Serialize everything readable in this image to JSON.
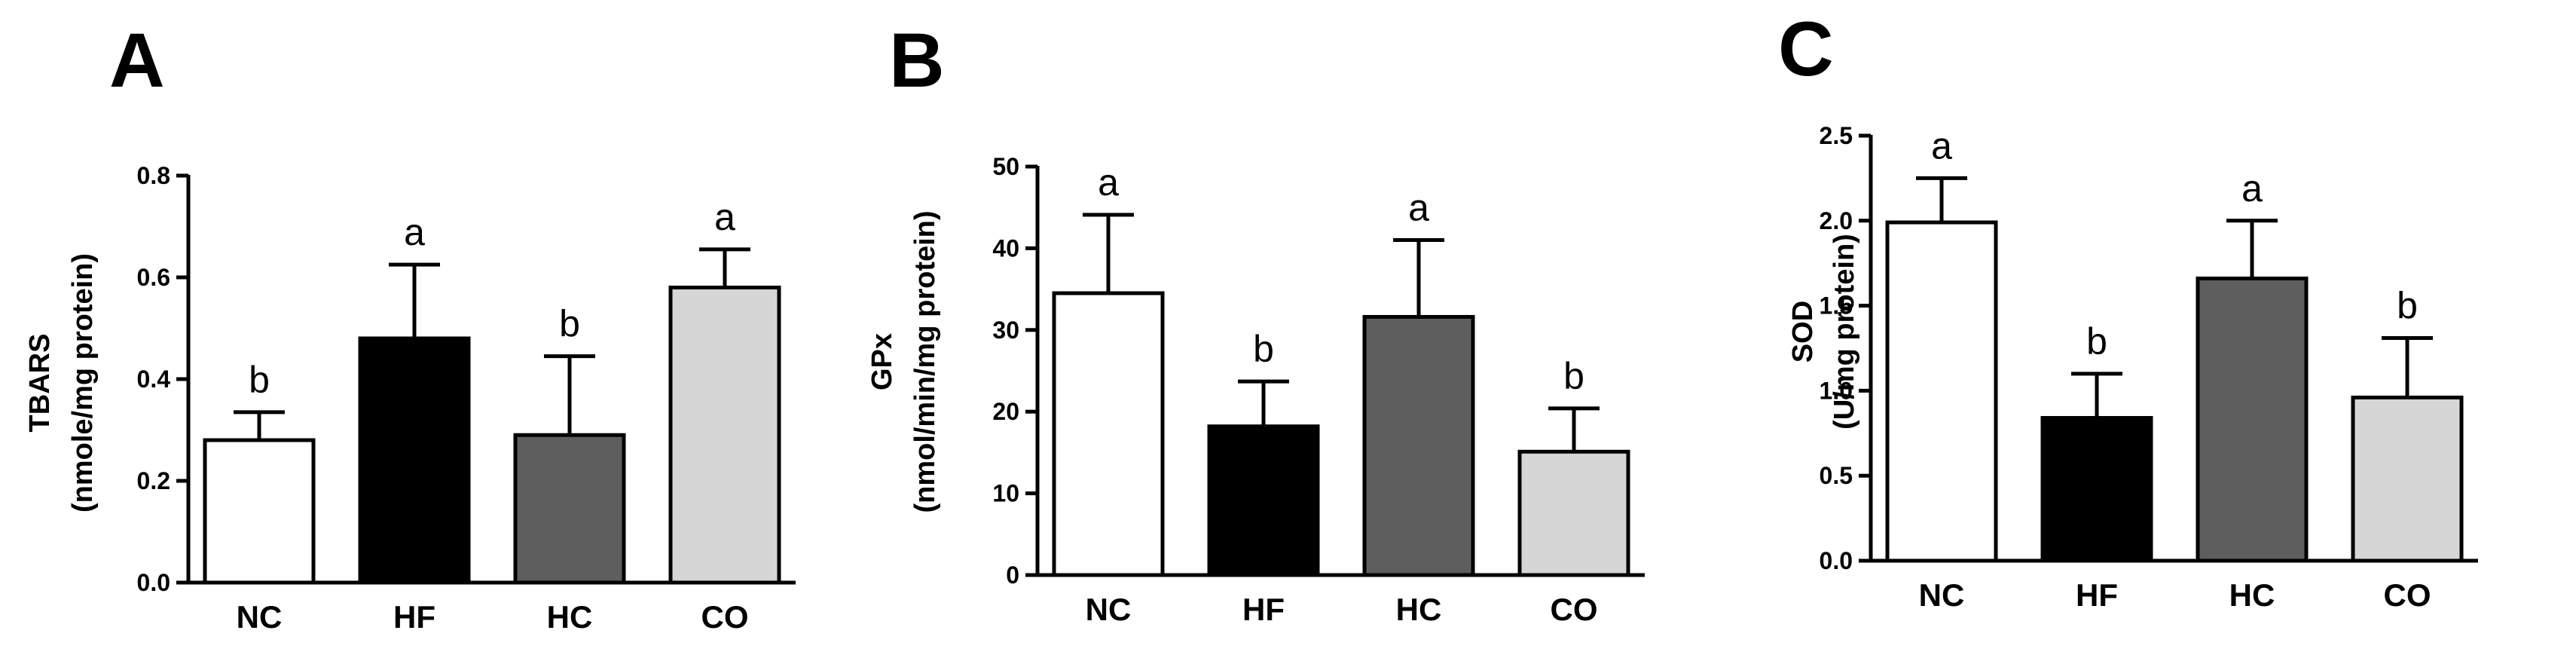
{
  "chart_data": [
    {
      "type": "bar",
      "panel": "A",
      "ylabel": [
        "TBARS",
        "(nmole/mg protein)"
      ],
      "categories": [
        "NC",
        "HF",
        "HC",
        "CO"
      ],
      "values": [
        0.28,
        0.48,
        0.29,
        0.58
      ],
      "errors": [
        0.055,
        0.145,
        0.155,
        0.075
      ],
      "significance": [
        "b",
        "a",
        "b",
        "a"
      ],
      "bar_colors": [
        "#ffffff",
        "#000000",
        "#5e5e5e",
        "#d6d6d6"
      ],
      "ylim": [
        0,
        0.8
      ],
      "yticks": [
        "0.0",
        "0.2",
        "0.4",
        "0.6",
        "0.8"
      ],
      "grid": false
    },
    {
      "type": "bar",
      "panel": "B",
      "ylabel": [
        "GPx",
        "(nmol/min/mg protein)"
      ],
      "categories": [
        "NC",
        "HF",
        "HC",
        "CO"
      ],
      "values": [
        34.5,
        18.2,
        31.6,
        15.1
      ],
      "errors": [
        9.6,
        5.5,
        9.4,
        5.3
      ],
      "significance": [
        "a",
        "b",
        "a",
        "b"
      ],
      "bar_colors": [
        "#ffffff",
        "#000000",
        "#5e5e5e",
        "#d6d6d6"
      ],
      "ylim": [
        0,
        50
      ],
      "yticks": [
        "0",
        "10",
        "20",
        "30",
        "40",
        "50"
      ],
      "grid": false
    },
    {
      "type": "bar",
      "panel": "C",
      "ylabel": [
        "SOD",
        "(U/mg protein)"
      ],
      "categories": [
        "NC",
        "HF",
        "HC",
        "CO"
      ],
      "values": [
        1.99,
        0.84,
        1.66,
        0.96
      ],
      "errors": [
        0.26,
        0.26,
        0.34,
        0.35
      ],
      "significance": [
        "a",
        "b",
        "a",
        "b"
      ],
      "bar_colors": [
        "#ffffff",
        "#000000",
        "#5e5e5e",
        "#d6d6d6"
      ],
      "ylim": [
        0,
        2.5
      ],
      "yticks": [
        "0.0",
        "0.5",
        "1.0",
        "1.5",
        "2.0",
        "2.5"
      ],
      "grid": false
    }
  ]
}
